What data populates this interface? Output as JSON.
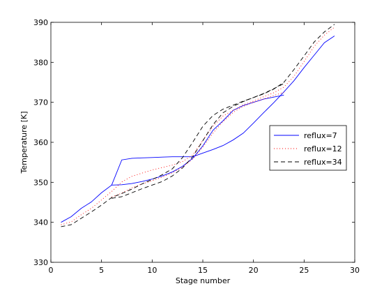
{
  "chart_data": {
    "type": "line",
    "title": "",
    "xlabel": "Stage number",
    "ylabel": "Temperature [K]",
    "xlim": [
      0,
      30
    ],
    "ylim": [
      330,
      390
    ],
    "xticks": [
      0,
      5,
      10,
      15,
      20,
      25,
      30
    ],
    "yticks": [
      330,
      340,
      350,
      360,
      370,
      380,
      390
    ],
    "grid": false,
    "legend_position": "right",
    "series": [
      {
        "name": "reflux=7",
        "color": "#0000ff",
        "dash": "solid",
        "curves": [
          {
            "x": [
              1,
              2,
              3,
              4,
              5,
              6,
              7,
              8,
              9,
              10,
              11,
              12,
              13,
              14,
              15,
              16,
              17,
              18,
              19,
              20,
              21,
              22,
              23,
              24,
              25,
              26,
              27,
              28
            ],
            "y": [
              340.0,
              341.4,
              343.5,
              345.1,
              347.4,
              349.3,
              355.6,
              356.0,
              356.1,
              356.2,
              356.3,
              356.4,
              356.4,
              356.4,
              357.3,
              358.2,
              359.2,
              360.6,
              362.3,
              364.8,
              367.4,
              369.9,
              372.6,
              375.4,
              378.7,
              381.8,
              384.9,
              386.6
            ]
          },
          {
            "x": [
              6,
              7,
              8,
              9,
              10,
              11,
              12,
              13,
              14,
              15,
              16,
              17,
              18,
              19,
              20,
              21,
              22,
              23
            ],
            "y": [
              349.3,
              349.4,
              349.7,
              350.2,
              350.8,
              351.6,
              352.6,
              354.0,
              356.0,
              359.1,
              363.0,
              365.4,
              368.0,
              369.2,
              370.0,
              370.8,
              371.3,
              371.8
            ]
          }
        ]
      },
      {
        "name": "reflux=12",
        "color": "#ff0000",
        "dash": "dotted",
        "curves": [
          {
            "x": [
              1,
              2,
              3,
              4,
              5,
              6,
              7,
              8,
              9,
              10,
              11,
              12,
              13,
              14,
              15,
              16,
              17,
              18,
              19,
              20,
              21,
              22,
              23,
              24,
              25,
              26,
              27,
              28
            ],
            "y": [
              339.4,
              340.1,
              341.9,
              343.5,
              345.6,
              347.7,
              350.1,
              351.5,
              352.3,
              353.1,
              353.7,
              354.3,
              355.2,
              356.8,
              360.5,
              364.0,
              366.6,
              368.0,
              369.4,
              370.3,
              371.4,
              372.4,
              373.8,
              376.5,
              380.2,
              384.0,
              386.8,
              388.8
            ]
          },
          {
            "x": [
              6,
              7,
              8,
              9,
              10,
              11,
              12,
              13,
              14,
              15,
              16,
              17,
              18,
              19,
              20,
              21,
              22,
              23
            ],
            "y": [
              346.3,
              347.3,
              348.6,
              349.6,
              350.4,
              351.3,
              352.4,
              353.8,
              355.8,
              358.8,
              362.3,
              365.2,
              367.5,
              369.0,
              370.0,
              370.8,
              371.7,
              372.5
            ]
          }
        ]
      },
      {
        "name": "reflux=34",
        "color": "#000000",
        "dash": "dashed",
        "curves": [
          {
            "x": [
              1,
              2,
              3,
              4,
              5,
              6,
              7,
              8,
              9,
              10,
              11,
              12,
              13,
              14,
              15,
              16,
              17,
              18,
              19,
              20,
              21,
              22,
              23,
              24,
              25,
              26,
              27,
              28
            ],
            "y": [
              338.9,
              339.4,
              341.0,
              342.6,
              344.3,
              346.2,
              347.2,
              348.3,
              349.6,
              350.7,
              351.9,
              353.4,
              356.2,
              360.0,
              364.0,
              366.7,
              368.3,
              369.3,
              370.3,
              371.2,
              372.1,
              373.3,
              375.0,
              378.2,
              381.6,
              385.1,
              387.6,
              389.5
            ]
          },
          {
            "x": [
              6,
              7,
              8,
              9,
              10,
              11,
              12,
              13,
              14,
              15,
              16,
              17,
              18,
              19,
              20,
              21,
              22,
              23
            ],
            "y": [
              346.0,
              346.4,
              347.4,
              348.4,
              349.3,
              350.2,
              351.6,
              353.6,
              356.4,
              360.4,
              364.4,
              367.4,
              369.0,
              370.2,
              371.2,
              372.2,
              373.4,
              374.7
            ]
          }
        ]
      }
    ]
  }
}
